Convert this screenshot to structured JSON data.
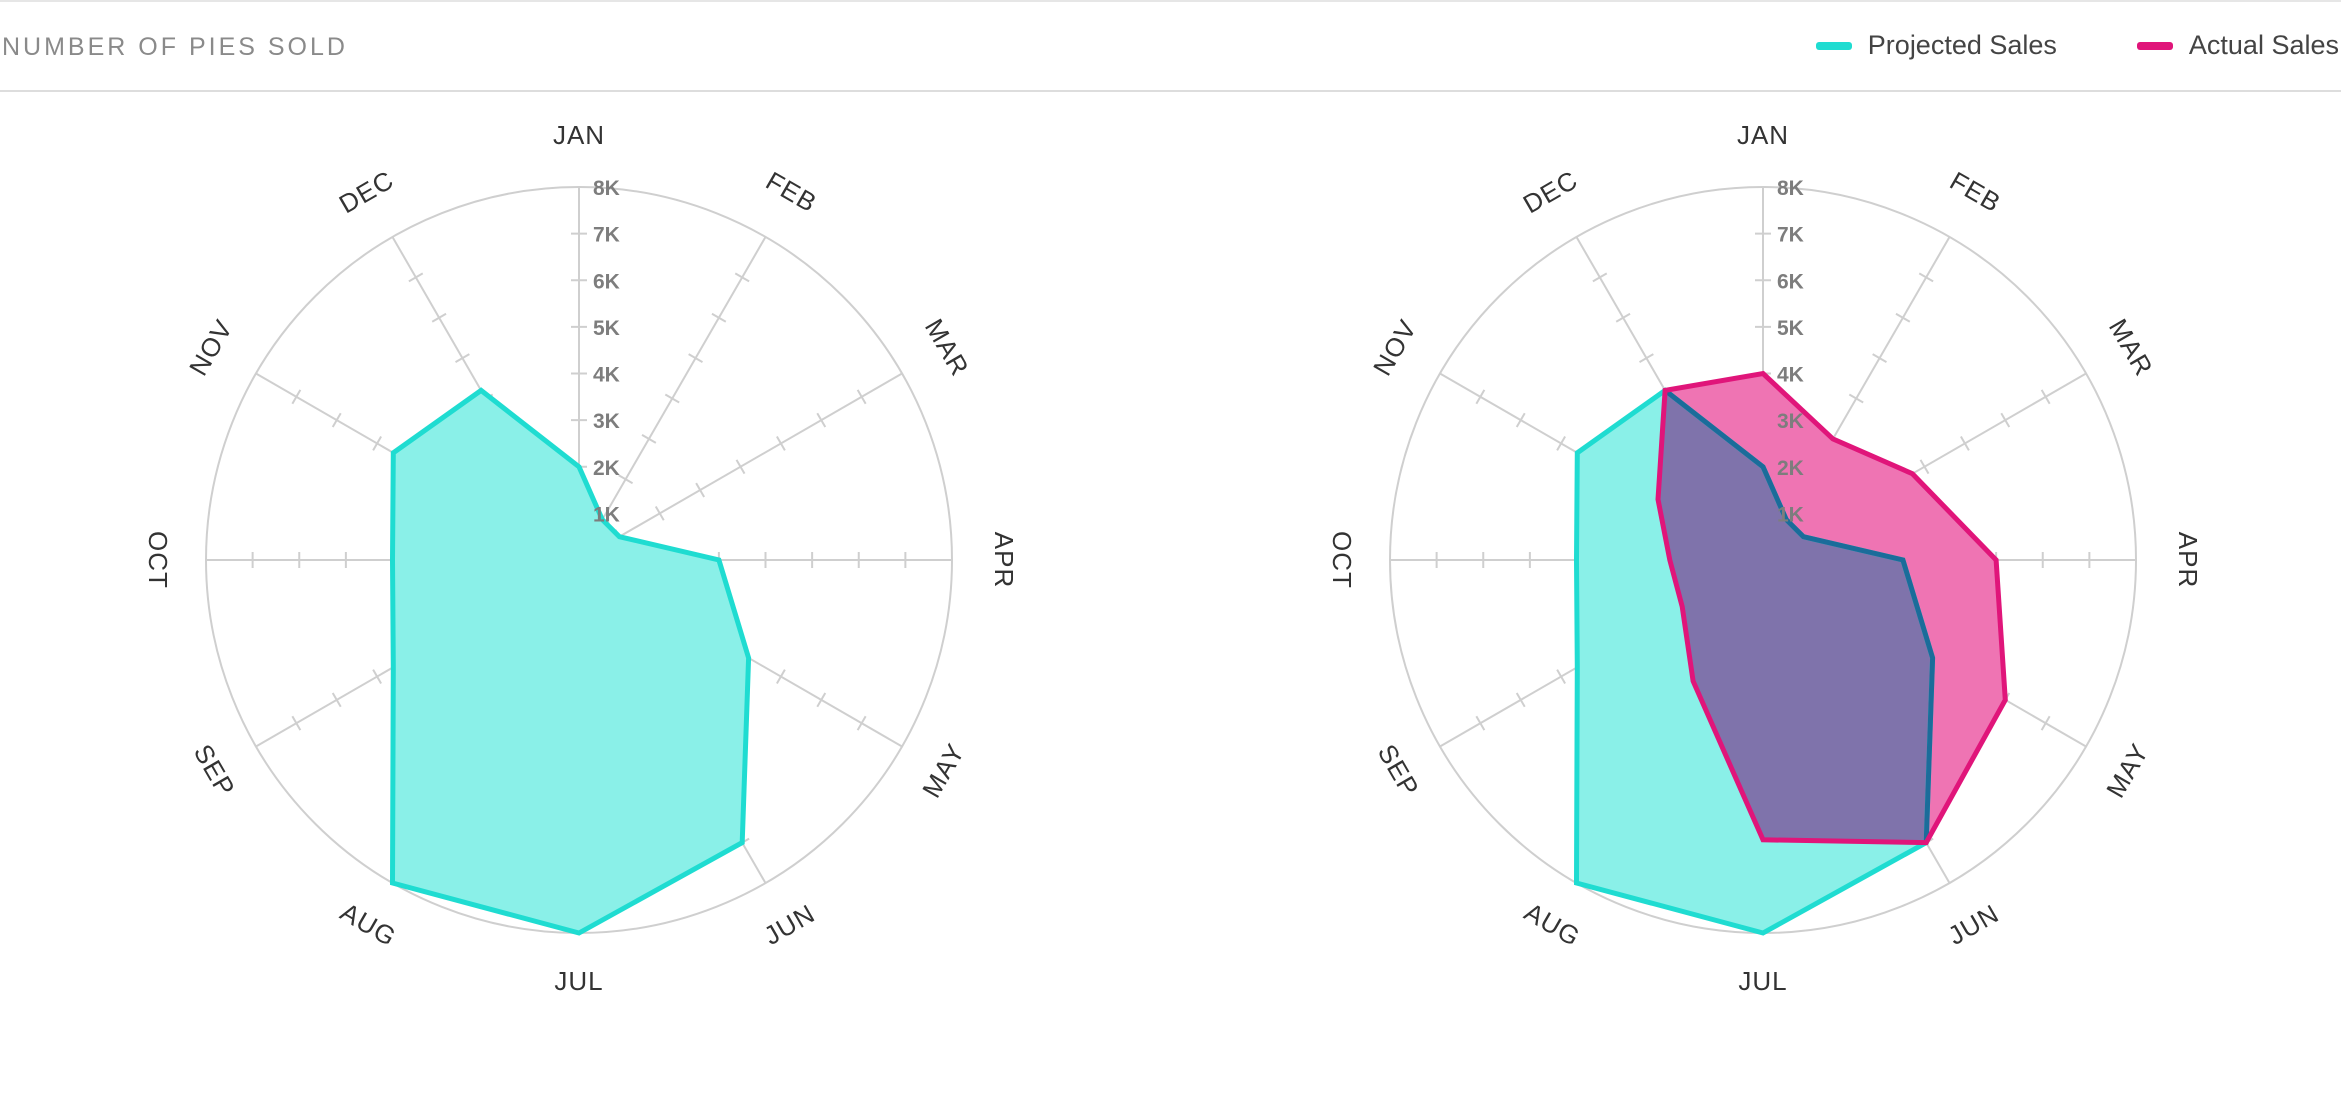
{
  "header": {
    "title": "NUMBER OF PIES SOLD"
  },
  "legend": [
    {
      "label": "Projected Sales",
      "color": "#1fdcd1"
    },
    {
      "label": "Actual Sales",
      "color": "#e0157a"
    }
  ],
  "colors": {
    "projected": "#1fdcd1",
    "projected_fill": "#8af0e8",
    "actual": "#e0157a",
    "actual_fill": "#ef74b3",
    "overlap_fill": "#7f73ab",
    "overlap_stroke": "#1b6c9a",
    "grid": "#cfcfcf",
    "tick_text": "#7d7d7d",
    "month_text": "#333333"
  },
  "chart_data": [
    {
      "type": "radar",
      "title": "",
      "categories": [
        "JAN",
        "FEB",
        "MAR",
        "APR",
        "MAY",
        "JUN",
        "JUL",
        "AUG",
        "SEP",
        "OCT",
        "NOV",
        "DEC"
      ],
      "r_ticks": [
        "1K",
        "2K",
        "3K",
        "4K",
        "5K",
        "6K",
        "7K",
        "8K"
      ],
      "rlim": [
        0,
        8000
      ],
      "grid": true,
      "series": [
        {
          "name": "Projected Sales",
          "values": [
            2000,
            1000,
            1000,
            3000,
            4200,
            7000,
            8000,
            8000,
            4600,
            4000,
            4600,
            4200
          ]
        }
      ]
    },
    {
      "type": "radar",
      "title": "",
      "categories": [
        "JAN",
        "FEB",
        "MAR",
        "APR",
        "MAY",
        "JUN",
        "JUL",
        "AUG",
        "SEP",
        "OCT",
        "NOV",
        "DEC"
      ],
      "r_ticks": [
        "1K",
        "2K",
        "3K",
        "4K",
        "5K",
        "6K",
        "7K",
        "8K"
      ],
      "rlim": [
        0,
        8000
      ],
      "grid": true,
      "series": [
        {
          "name": "Projected Sales",
          "values": [
            2000,
            1000,
            1000,
            3000,
            4200,
            7000,
            8000,
            8000,
            4600,
            4000,
            4600,
            4200
          ]
        },
        {
          "name": "Actual Sales",
          "values": [
            4000,
            3000,
            3700,
            5000,
            6000,
            7000,
            6000,
            3000,
            2000,
            2000,
            2600,
            4200
          ]
        }
      ]
    }
  ]
}
